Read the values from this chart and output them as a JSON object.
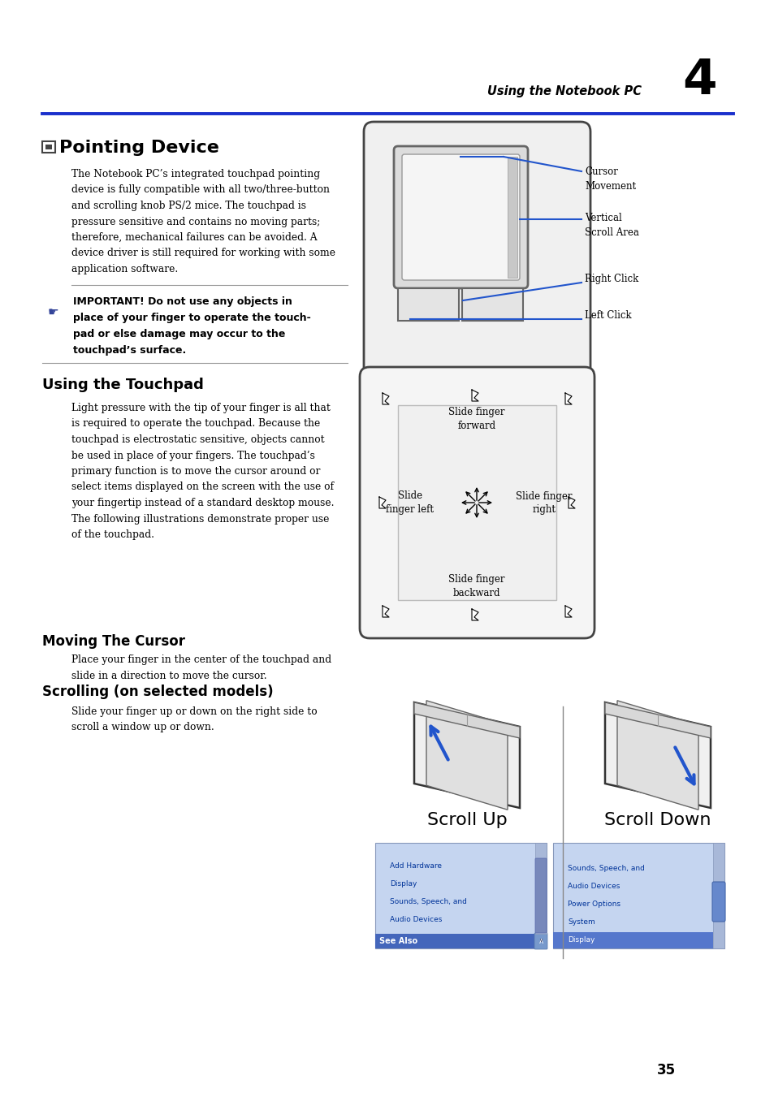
{
  "bg_color": "#ffffff",
  "header_text": "Using the Notebook PC",
  "chapter_num": "4",
  "header_line_color": "#1a2fcc",
  "s1_title": "Pointing Device",
  "s1_body": [
    "The Notebook PC’s integrated touchpad pointing",
    "device is fully compatible with all two/three-button",
    "and scrolling knob PS/2 mice. The touchpad is",
    "pressure sensitive and contains no moving parts;",
    "therefore, mechanical failures can be avoided. A",
    "device driver is still required for working with some",
    "application software."
  ],
  "important_text": [
    "IMPORTANT! Do not use any objects in",
    "place of your finger to operate the touch-",
    "pad or else damage may occur to the",
    "touchpad’s surface."
  ],
  "s2_title": "Using the Touchpad",
  "s2_body": [
    "Light pressure with the tip of your finger is all that",
    "is required to operate the touchpad. Because the",
    "touchpad is electrostatic sensitive, objects cannot",
    "be used in place of your fingers. The touchpad’s",
    "primary function is to move the cursor around or",
    "select items displayed on the screen with the use of",
    "your fingertip instead of a standard desktop mouse.",
    "The following illustrations demonstrate proper use",
    "of the touchpad."
  ],
  "s3_title": "Moving The Cursor",
  "s3_body": [
    "Place your finger in the center of the touchpad and",
    "slide in a direction to move the cursor."
  ],
  "s4_title": "Scrolling (on selected models)",
  "s4_body": [
    "Slide your finger up or down on the right side to",
    "scroll a window up or down."
  ],
  "scroll_up_label": "Scroll Up",
  "scroll_down_label": "Scroll Down",
  "page_num": "35",
  "lbl_cursor": "Cursor\nMovement",
  "lbl_vscroll": "Vertical\nScroll Area",
  "lbl_rclick": "Right Click",
  "lbl_lclick": "Left Click",
  "lbl_forward": "Slide finger\nforward",
  "lbl_backward": "Slide finger\nbackward",
  "lbl_left": "Slide\nfinger left",
  "lbl_right": "Slide finger\nright",
  "accent": "#2255cc",
  "black": "#000000",
  "gray_dark": "#444444",
  "gray_mid": "#888888",
  "gray_light": "#e8e8e8",
  "ss_left_items": [
    "See Also",
    "Add Hardware",
    "Display",
    "Sounds, Speech, and",
    "Audio Devices"
  ],
  "ss_right_items": [
    "Display",
    "Sounds, Speech, and",
    "Audio Devices",
    "Power Options",
    "System"
  ]
}
